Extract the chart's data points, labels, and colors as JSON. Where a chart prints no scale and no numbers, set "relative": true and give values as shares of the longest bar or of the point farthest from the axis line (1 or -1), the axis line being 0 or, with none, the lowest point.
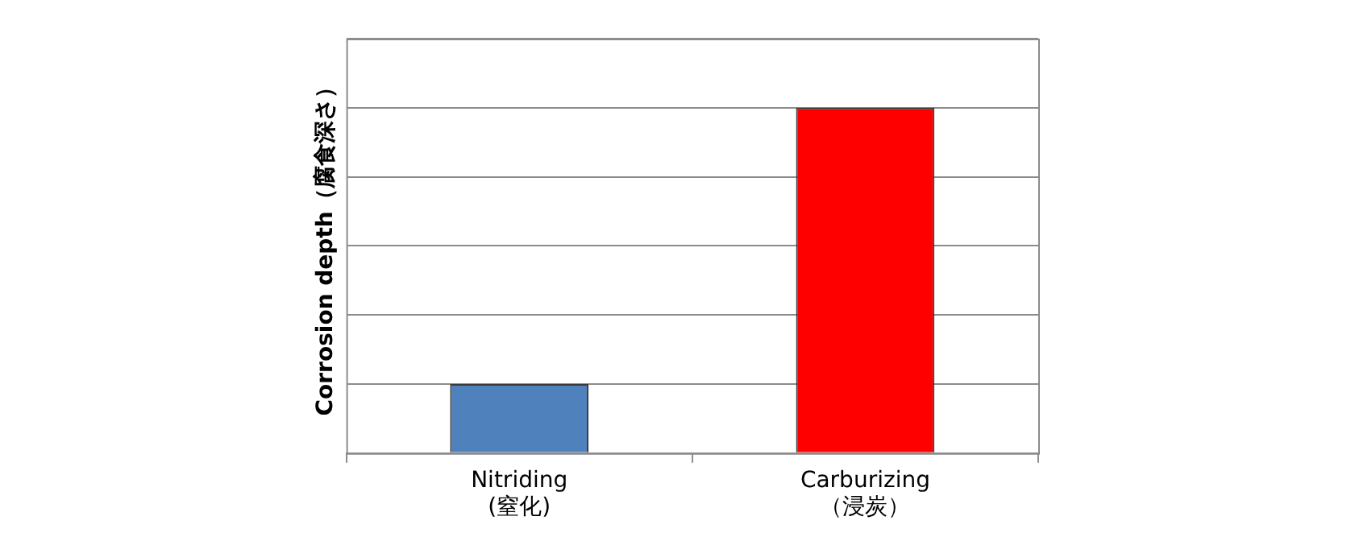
{
  "chart_data": {
    "type": "bar",
    "ylabel": "Corrosion depth（腐食深さ）",
    "relative": true,
    "grid": "y",
    "categories": [
      "Nitriding\n(窒化)",
      "Carburizing\n（浸炭）"
    ],
    "values": [
      0.2,
      1
    ],
    "colors": [
      "#4f81bd",
      "#ff0000"
    ]
  }
}
